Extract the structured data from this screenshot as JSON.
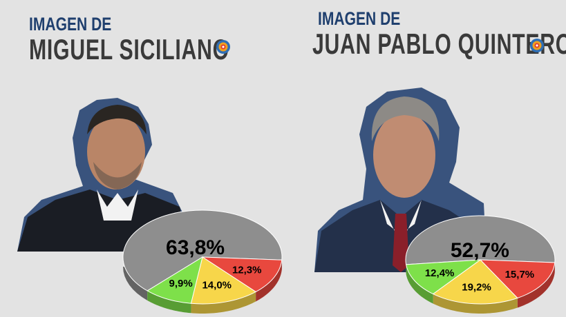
{
  "panels": [
    {
      "kicker": "IMAGEN DE",
      "name": "MIGUEL SICILIANO",
      "photo": "portrait of Miguel Siciliano",
      "logo_icon": "circular-logo-icon"
    },
    {
      "kicker": "IMAGEN DE",
      "name": "JUAN PABLO QUINTEROS",
      "photo": "portrait of Juan Pablo Quinteros",
      "logo_icon": "circular-logo-icon"
    }
  ],
  "colors": {
    "gray": "#8e8e8e",
    "green": "#7ee04a",
    "yellow": "#f7d64a",
    "red": "#e8483e",
    "title_blue": "#1f3f6e",
    "name_dark": "#3a3a3a"
  },
  "chart_data": [
    {
      "type": "pie",
      "title": "",
      "slices": [
        {
          "label": "63,8%",
          "value": 63.8,
          "color": "#8e8e8e"
        },
        {
          "label": "12,3%",
          "value": 12.3,
          "color": "#e8483e"
        },
        {
          "label": "14,0%",
          "value": 14.0,
          "color": "#f7d64a"
        },
        {
          "label": "9,9%",
          "value": 9.9,
          "color": "#7ee04a"
        }
      ]
    },
    {
      "type": "pie",
      "title": "",
      "slices": [
        {
          "label": "52,7%",
          "value": 52.7,
          "color": "#8e8e8e"
        },
        {
          "label": "15,7%",
          "value": 15.7,
          "color": "#e8483e"
        },
        {
          "label": "19,2%",
          "value": 19.2,
          "color": "#f7d64a"
        },
        {
          "label": "12,4%",
          "value": 12.4,
          "color": "#7ee04a"
        }
      ]
    }
  ]
}
